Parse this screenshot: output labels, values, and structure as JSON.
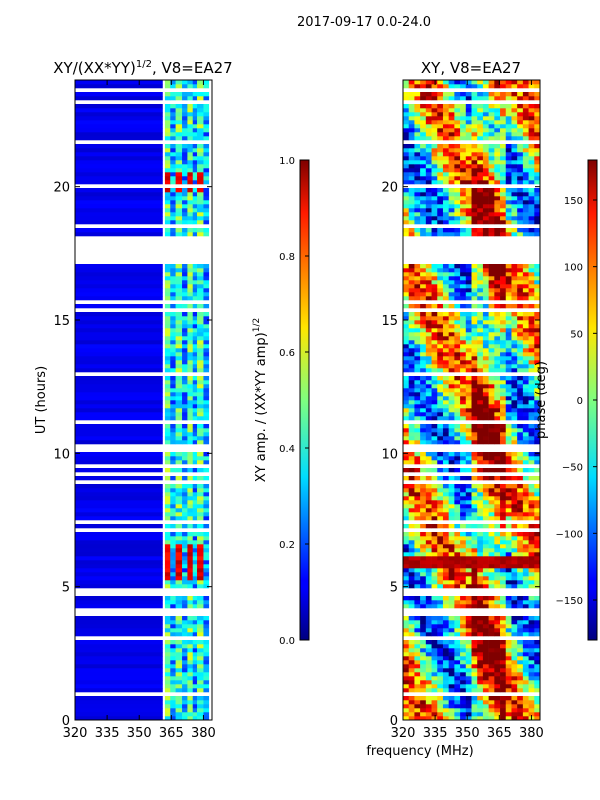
{
  "figure": {
    "suptitle": "2017-09-17 0.0-24.0",
    "shared_xlabel": "frequency (MHz)"
  },
  "chart_data": [
    {
      "type": "heatmap",
      "title": "XY/(XX*YY)^1/2, V8=EA27",
      "title_parts": {
        "main": "XY/(XX*YY)",
        "exponent": "1/2",
        "suffix": ", V8=EA27"
      },
      "xlabel": "",
      "ylabel": "UT (hours)",
      "xlim": [
        320,
        384
      ],
      "ylim": [
        0,
        24
      ],
      "xticks": [
        320,
        335,
        350,
        365,
        380
      ],
      "yticks": [
        0,
        5,
        10,
        15,
        20
      ],
      "colorbar": {
        "label": "XY amp. / (XX*YY amp)^1/2",
        "label_parts": {
          "main": "XY amp. / (XX*YY amp)",
          "exponent": "1/2"
        },
        "range": [
          0.0,
          1.0
        ],
        "ticks": [
          "0.0",
          "0.2",
          "0.4",
          "0.6",
          "0.8",
          "1.0"
        ],
        "colormap": "jet"
      },
      "description_values": {
        "background_level": 0.08,
        "high_freq_band_start_mhz": 361,
        "high_freq_band_level": 0.45,
        "peak_times_hours": [
          5.6,
          6.3,
          20.2
        ],
        "peak_level": 0.85
      }
    },
    {
      "type": "heatmap",
      "title": "XY, V8=EA27",
      "xlabel": "frequency (MHz)",
      "ylabel": "phase (deg)",
      "xlim": [
        320,
        384
      ],
      "ylim": [
        0,
        24
      ],
      "xticks": [
        320,
        335,
        350,
        365,
        380
      ],
      "yticks": [
        0,
        5,
        10,
        15,
        20
      ],
      "colorbar": {
        "label": "phase (deg)",
        "range": [
          -180,
          180
        ],
        "ticks": [
          "−150",
          "−100",
          "−50",
          "0",
          "50",
          "100",
          "150"
        ],
        "colormap": "jet"
      },
      "description_values": {
        "strong_band_hours": [
          5.7,
          6.2
        ],
        "strong_band_phase": 170
      }
    }
  ],
  "colors": {
    "jet_low": "#00007f",
    "jet_mid": "#7fff7f",
    "jet_high": "#7f0000"
  }
}
